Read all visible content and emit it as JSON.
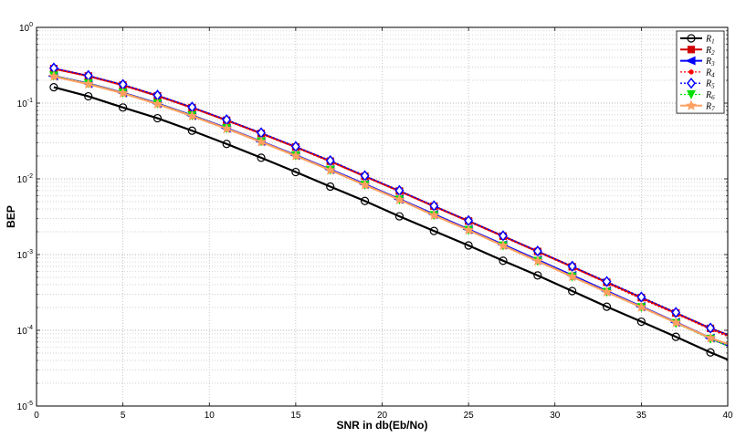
{
  "chart_data": {
    "type": "line",
    "xlabel": "SNR in db(Eb/No)",
    "ylabel": "BEP",
    "xlim": [
      0,
      40
    ],
    "ylim": [
      1e-05,
      1
    ],
    "yscale": "log",
    "grid": true,
    "legend_position": "top-right",
    "x_ticks": [
      "0",
      "5",
      "10",
      "15",
      "20",
      "25",
      "30",
      "35",
      "40"
    ],
    "y_ticks": [
      {
        "base": "10",
        "exp": "0"
      },
      {
        "base": "10",
        "exp": "-1"
      },
      {
        "base": "10",
        "exp": "-2"
      },
      {
        "base": "10",
        "exp": "-3"
      },
      {
        "base": "10",
        "exp": "-4"
      },
      {
        "base": "10",
        "exp": "-5"
      }
    ],
    "x": [
      1,
      3,
      5,
      7,
      9,
      11,
      13,
      15,
      17,
      19,
      21,
      23,
      25,
      27,
      29,
      31,
      33,
      35,
      37,
      39,
      40
    ],
    "series": [
      {
        "name": "R",
        "sub": "1",
        "color": "#000000",
        "dash": "",
        "marker": "circle",
        "values": [
          0.162,
          0.123,
          0.0875,
          0.0632,
          0.0432,
          0.0289,
          0.019,
          0.0123,
          0.0079,
          0.0051,
          0.0032,
          0.00205,
          0.00132,
          0.00083,
          0.00053,
          0.00033,
          0.000205,
          0.00013,
          8.2e-05,
          5.1e-05,
          4.1e-05
        ]
      },
      {
        "name": "R",
        "sub": "2",
        "color": "#d00000",
        "dash": "",
        "marker": "square",
        "values": [
          0.285,
          0.228,
          0.173,
          0.125,
          0.0872,
          0.0594,
          0.0398,
          0.0263,
          0.0171,
          0.0108,
          0.0069,
          0.00435,
          0.00277,
          0.00175,
          0.0011,
          0.00069,
          0.00043,
          0.00027,
          0.000169,
          0.000106,
          8.7e-05
        ]
      },
      {
        "name": "R",
        "sub": "3",
        "color": "#0000ff",
        "dash": "",
        "marker": "triangle-left",
        "values": [
          0.228,
          0.181,
          0.137,
          0.099,
          0.0687,
          0.0467,
          0.0312,
          0.0205,
          0.0133,
          0.0085,
          0.0054,
          0.0034,
          0.00215,
          0.00135,
          0.00085,
          0.00053,
          0.00033,
          0.000206,
          0.000128,
          7.9e-05,
          6.3e-05
        ]
      },
      {
        "name": "R",
        "sub": "4",
        "color": "#ff0000",
        "dash": "2,2",
        "marker": "dot",
        "values": [
          0.285,
          0.225,
          0.17,
          0.123,
          0.086,
          0.0585,
          0.0392,
          0.0259,
          0.0168,
          0.0107,
          0.0068,
          0.0043,
          0.00272,
          0.00172,
          0.00108,
          0.00068,
          0.00042,
          0.00026,
          0.000165,
          0.000103,
          8.3e-05
        ]
      },
      {
        "name": "R",
        "sub": "5",
        "color": "#0000ff",
        "dash": "2,2",
        "marker": "diamond",
        "values": [
          0.29,
          0.231,
          0.176,
          0.127,
          0.0885,
          0.0603,
          0.0405,
          0.0267,
          0.0174,
          0.011,
          0.007,
          0.0044,
          0.0028,
          0.00177,
          0.00111,
          0.0007,
          0.00044,
          0.000275,
          0.000172,
          0.000107,
          8.8e-05
        ]
      },
      {
        "name": "R",
        "sub": "6",
        "color": "#00e000",
        "dash": "2,2",
        "marker": "triangle-down",
        "values": [
          0.23,
          0.182,
          0.137,
          0.099,
          0.0685,
          0.0465,
          0.031,
          0.0203,
          0.0131,
          0.0083,
          0.0053,
          0.0033,
          0.0021,
          0.00131,
          0.00082,
          0.00051,
          0.00032,
          0.000201,
          0.000124,
          7.7e-05,
          6.2e-05
        ]
      },
      {
        "name": "R",
        "sub": "7",
        "color": "#ffa060",
        "dash": "",
        "marker": "star",
        "values": [
          0.225,
          0.178,
          0.135,
          0.097,
          0.0675,
          0.046,
          0.0307,
          0.0201,
          0.013,
          0.0083,
          0.0053,
          0.0033,
          0.0021,
          0.00131,
          0.00082,
          0.00051,
          0.00032,
          0.000202,
          0.000126,
          7.9e-05,
          6.6e-05
        ]
      }
    ]
  }
}
